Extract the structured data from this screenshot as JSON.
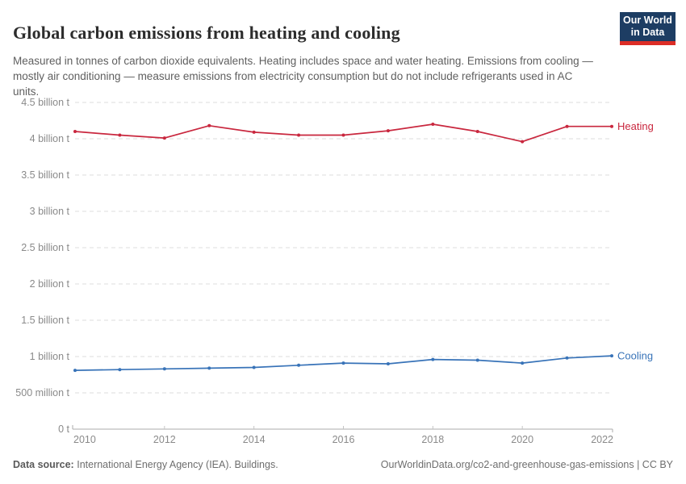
{
  "header": {
    "title": "Global carbon emissions from heating and cooling",
    "subtitle": "Measured in tonnes of carbon dioxide equivalents. Heating includes space and water heating. Emissions from cooling — mostly air conditioning — measure emissions from electricity consumption but do not include refrigerants used in AC units.",
    "logo_line1": "Our World",
    "logo_line2": "in Data",
    "logo_colors": {
      "background": "#1d3d63",
      "stripe": "#dc2d26"
    }
  },
  "chart_data": {
    "type": "line",
    "title": "Global carbon emissions from heating and cooling",
    "unit": "tonnes of CO2 equivalents",
    "x": [
      2010,
      2011,
      2012,
      2013,
      2014,
      2015,
      2016,
      2017,
      2018,
      2019,
      2020,
      2021,
      2022
    ],
    "series": [
      {
        "name": "Heating",
        "color": "#c9273e",
        "values_billion_t": [
          4.1,
          4.05,
          4.01,
          4.18,
          4.09,
          4.05,
          4.05,
          4.11,
          4.2,
          4.1,
          3.96,
          4.17,
          4.17
        ]
      },
      {
        "name": "Cooling",
        "color": "#3873b8",
        "values_billion_t": [
          0.81,
          0.82,
          0.83,
          0.84,
          0.85,
          0.88,
          0.91,
          0.9,
          0.96,
          0.95,
          0.91,
          0.98,
          1.01
        ]
      }
    ],
    "ylim_billion_t": [
      0,
      4.5
    ],
    "yticks": [
      {
        "v": 0,
        "label": "0 t"
      },
      {
        "v": 0.5,
        "label": "500 million t"
      },
      {
        "v": 1,
        "label": "1 billion t"
      },
      {
        "v": 1.5,
        "label": "1.5 billion t"
      },
      {
        "v": 2,
        "label": "2 billion t"
      },
      {
        "v": 2.5,
        "label": "2.5 billion t"
      },
      {
        "v": 3,
        "label": "3 billion t"
      },
      {
        "v": 3.5,
        "label": "3.5 billion t"
      },
      {
        "v": 4,
        "label": "4 billion t"
      },
      {
        "v": 4.5,
        "label": "4.5 billion t"
      }
    ],
    "xticks": [
      "2010",
      "2012",
      "2014",
      "2016",
      "2018",
      "2020",
      "2022"
    ],
    "grid": "horizontal dashed",
    "legend": "line-end labels",
    "colors": {
      "gridline": "#dcdcdc",
      "axis": "#ababab",
      "tick_text": "#8a8a8a"
    }
  },
  "footer": {
    "source_label": "Data source:",
    "source_text": "International Energy Agency (IEA). Buildings.",
    "credit": "OurWorldinData.org/co2-and-greenhouse-gas-emissions | CC BY"
  }
}
